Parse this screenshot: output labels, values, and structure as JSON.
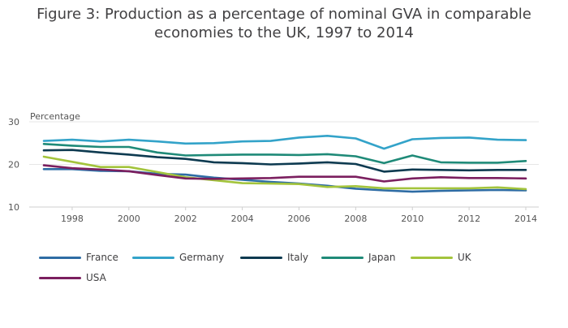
{
  "chart_data": {
    "type": "line",
    "title_line1": "Figure 3: Production as a percentage of nominal GVA in comparable",
    "title_line2": "economies to the UK, 1997 to 2014",
    "ylabel": "Percentage",
    "xlabel": "",
    "xlim": [
      1997,
      2014
    ],
    "ylim": [
      10,
      30
    ],
    "y_ticks": [
      10,
      20,
      30
    ],
    "x_ticks": [
      1998,
      2000,
      2002,
      2004,
      2006,
      2008,
      2010,
      2012,
      2014
    ],
    "grid": "horizontal",
    "legend_position": "bottom",
    "x": [
      1997,
      1998,
      1999,
      2000,
      2001,
      2002,
      2003,
      2004,
      2005,
      2006,
      2007,
      2008,
      2009,
      2010,
      2011,
      2012,
      2013,
      2014
    ],
    "series": [
      {
        "name": "France",
        "color": "#2e6ca4",
        "values": [
          18.9,
          18.9,
          18.5,
          18.4,
          17.8,
          17.6,
          16.9,
          16.4,
          15.9,
          15.5,
          15.0,
          14.3,
          13.9,
          13.6,
          13.8,
          13.9,
          14.0,
          13.9
        ]
      },
      {
        "name": "Germany",
        "color": "#33a3c9",
        "values": [
          25.5,
          25.8,
          25.4,
          25.8,
          25.4,
          24.9,
          25.0,
          25.4,
          25.5,
          26.3,
          26.7,
          26.1,
          23.7,
          25.9,
          26.2,
          26.3,
          25.8,
          25.7
        ]
      },
      {
        "name": "Italy",
        "color": "#0d3a50",
        "values": [
          23.3,
          23.4,
          22.8,
          22.3,
          21.7,
          21.3,
          20.5,
          20.3,
          20.0,
          20.2,
          20.5,
          20.1,
          18.3,
          18.8,
          18.7,
          18.6,
          18.7,
          18.7
        ]
      },
      {
        "name": "Japan",
        "color": "#1f8a78",
        "values": [
          24.8,
          24.4,
          24.1,
          24.1,
          22.8,
          22.1,
          22.2,
          22.3,
          22.3,
          22.2,
          22.4,
          21.9,
          20.3,
          22.1,
          20.5,
          20.4,
          20.4,
          20.8
        ]
      },
      {
        "name": "UK",
        "color": "#a3c43c",
        "values": [
          21.8,
          20.6,
          19.4,
          19.4,
          18.2,
          17.0,
          16.3,
          15.6,
          15.5,
          15.4,
          14.7,
          14.9,
          14.4,
          14.4,
          14.4,
          14.4,
          14.6,
          14.2
        ]
      },
      {
        "name": "USA",
        "color": "#7b1f5f",
        "values": [
          19.8,
          19.1,
          18.8,
          18.4,
          17.5,
          16.7,
          16.6,
          16.7,
          16.8,
          17.1,
          17.1,
          17.1,
          16.0,
          16.7,
          17.0,
          16.8,
          16.8,
          16.7
        ]
      }
    ]
  }
}
